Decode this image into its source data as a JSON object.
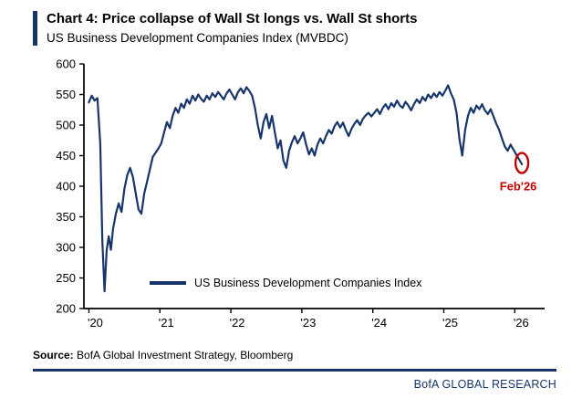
{
  "header": {
    "title": "Chart 4: Price collapse of Wall St longs vs. Wall St shorts",
    "subtitle": "US Business Development Companies Index (MVBDC)"
  },
  "footer": {
    "source_label": "Source:",
    "source_text": " BofA Global Investment Strategy, Bloomberg",
    "brand": "BofA GLOBAL RESEARCH"
  },
  "colors": {
    "navy": "#18356b",
    "red": "#c00000",
    "axis": "#000000"
  },
  "chart_data": {
    "type": "line",
    "title": "US Business Development Companies Index (MVBDC)",
    "xlabel": "",
    "ylabel": "",
    "grid": false,
    "legend_position": "inside-bottom",
    "xlim": [
      2019.93,
      2026.42
    ],
    "ylim": [
      200,
      600
    ],
    "y_ticks": [
      200,
      250,
      300,
      350,
      400,
      450,
      500,
      550,
      600
    ],
    "x_ticks": [
      {
        "x": 2020,
        "label": "'20"
      },
      {
        "x": 2021,
        "label": "'21"
      },
      {
        "x": 2022,
        "label": "'22"
      },
      {
        "x": 2023,
        "label": "'23"
      },
      {
        "x": 2024,
        "label": "'24"
      },
      {
        "x": 2025,
        "label": "'25"
      },
      {
        "x": 2026,
        "label": "'26"
      }
    ],
    "annotation": {
      "x": 2026.1,
      "y": 438,
      "label": "Feb'26",
      "color": "#c00000"
    },
    "series": [
      {
        "name": "US Business Development Companies Index",
        "color": "#18356b",
        "points": [
          [
            2020.0,
            537
          ],
          [
            2020.04,
            548
          ],
          [
            2020.08,
            540
          ],
          [
            2020.12,
            544
          ],
          [
            2020.16,
            470
          ],
          [
            2020.19,
            310
          ],
          [
            2020.22,
            228
          ],
          [
            2020.25,
            295
          ],
          [
            2020.28,
            318
          ],
          [
            2020.31,
            296
          ],
          [
            2020.34,
            330
          ],
          [
            2020.38,
            355
          ],
          [
            2020.42,
            372
          ],
          [
            2020.46,
            358
          ],
          [
            2020.5,
            396
          ],
          [
            2020.54,
            418
          ],
          [
            2020.58,
            430
          ],
          [
            2020.62,
            415
          ],
          [
            2020.66,
            388
          ],
          [
            2020.7,
            362
          ],
          [
            2020.74,
            355
          ],
          [
            2020.78,
            388
          ],
          [
            2020.82,
            408
          ],
          [
            2020.86,
            428
          ],
          [
            2020.9,
            448
          ],
          [
            2020.94,
            455
          ],
          [
            2020.98,
            462
          ],
          [
            2021.02,
            470
          ],
          [
            2021.06,
            488
          ],
          [
            2021.1,
            505
          ],
          [
            2021.14,
            495
          ],
          [
            2021.18,
            515
          ],
          [
            2021.22,
            528
          ],
          [
            2021.26,
            520
          ],
          [
            2021.3,
            535
          ],
          [
            2021.34,
            528
          ],
          [
            2021.38,
            542
          ],
          [
            2021.42,
            535
          ],
          [
            2021.46,
            548
          ],
          [
            2021.5,
            540
          ],
          [
            2021.54,
            550
          ],
          [
            2021.58,
            543
          ],
          [
            2021.62,
            538
          ],
          [
            2021.66,
            548
          ],
          [
            2021.7,
            542
          ],
          [
            2021.74,
            552
          ],
          [
            2021.78,
            546
          ],
          [
            2021.82,
            554
          ],
          [
            2021.86,
            548
          ],
          [
            2021.9,
            542
          ],
          [
            2021.94,
            552
          ],
          [
            2021.98,
            558
          ],
          [
            2022.02,
            550
          ],
          [
            2022.06,
            542
          ],
          [
            2022.1,
            554
          ],
          [
            2022.14,
            560
          ],
          [
            2022.18,
            552
          ],
          [
            2022.22,
            562
          ],
          [
            2022.26,
            556
          ],
          [
            2022.3,
            548
          ],
          [
            2022.34,
            528
          ],
          [
            2022.38,
            500
          ],
          [
            2022.42,
            478
          ],
          [
            2022.46,
            505
          ],
          [
            2022.5,
            518
          ],
          [
            2022.54,
            495
          ],
          [
            2022.58,
            515
          ],
          [
            2022.62,
            488
          ],
          [
            2022.66,
            462
          ],
          [
            2022.7,
            475
          ],
          [
            2022.74,
            442
          ],
          [
            2022.78,
            430
          ],
          [
            2022.82,
            458
          ],
          [
            2022.86,
            472
          ],
          [
            2022.9,
            482
          ],
          [
            2022.94,
            470
          ],
          [
            2022.98,
            478
          ],
          [
            2023.02,
            488
          ],
          [
            2023.06,
            468
          ],
          [
            2023.1,
            452
          ],
          [
            2023.14,
            462
          ],
          [
            2023.18,
            450
          ],
          [
            2023.22,
            468
          ],
          [
            2023.26,
            478
          ],
          [
            2023.3,
            470
          ],
          [
            2023.34,
            482
          ],
          [
            2023.38,
            492
          ],
          [
            2023.42,
            486
          ],
          [
            2023.46,
            498
          ],
          [
            2023.5,
            505
          ],
          [
            2023.54,
            496
          ],
          [
            2023.58,
            504
          ],
          [
            2023.62,
            492
          ],
          [
            2023.66,
            482
          ],
          [
            2023.7,
            494
          ],
          [
            2023.74,
            502
          ],
          [
            2023.78,
            508
          ],
          [
            2023.82,
            500
          ],
          [
            2023.86,
            510
          ],
          [
            2023.9,
            516
          ],
          [
            2023.94,
            520
          ],
          [
            2023.98,
            514
          ],
          [
            2024.02,
            520
          ],
          [
            2024.06,
            526
          ],
          [
            2024.1,
            518
          ],
          [
            2024.14,
            528
          ],
          [
            2024.18,
            534
          ],
          [
            2024.22,
            526
          ],
          [
            2024.26,
            536
          ],
          [
            2024.3,
            530
          ],
          [
            2024.34,
            540
          ],
          [
            2024.38,
            532
          ],
          [
            2024.42,
            528
          ],
          [
            2024.46,
            538
          ],
          [
            2024.5,
            532
          ],
          [
            2024.54,
            524
          ],
          [
            2024.58,
            534
          ],
          [
            2024.62,
            542
          ],
          [
            2024.66,
            536
          ],
          [
            2024.7,
            546
          ],
          [
            2024.74,
            540
          ],
          [
            2024.78,
            550
          ],
          [
            2024.82,
            544
          ],
          [
            2024.86,
            552
          ],
          [
            2024.9,
            546
          ],
          [
            2024.94,
            554
          ],
          [
            2024.98,
            548
          ],
          [
            2025.02,
            556
          ],
          [
            2025.06,
            565
          ],
          [
            2025.1,
            552
          ],
          [
            2025.14,
            542
          ],
          [
            2025.18,
            520
          ],
          [
            2025.22,
            478
          ],
          [
            2025.26,
            450
          ],
          [
            2025.3,
            492
          ],
          [
            2025.34,
            515
          ],
          [
            2025.38,
            528
          ],
          [
            2025.42,
            520
          ],
          [
            2025.46,
            532
          ],
          [
            2025.5,
            526
          ],
          [
            2025.54,
            534
          ],
          [
            2025.58,
            524
          ],
          [
            2025.62,
            518
          ],
          [
            2025.66,
            526
          ],
          [
            2025.7,
            514
          ],
          [
            2025.74,
            502
          ],
          [
            2025.78,
            492
          ],
          [
            2025.82,
            478
          ],
          [
            2025.86,
            465
          ],
          [
            2025.9,
            458
          ],
          [
            2025.94,
            468
          ],
          [
            2025.98,
            460
          ],
          [
            2026.02,
            452
          ],
          [
            2026.06,
            444
          ],
          [
            2026.1,
            436
          ]
        ]
      }
    ]
  }
}
